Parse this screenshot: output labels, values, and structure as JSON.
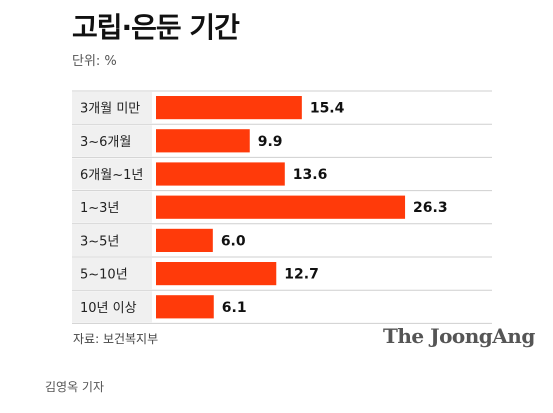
{
  "header": {
    "title": "고립·은둔 기간",
    "unit": "단위: %"
  },
  "footer": {
    "source": "자료: 보건복지부",
    "brand": "The JoongAng",
    "byline": "김영옥 기자"
  },
  "colors": {
    "bar": "#ff3a0a",
    "label_bg": "#f0f0f0",
    "rule": "#cfcfcf"
  },
  "chart_data": {
    "type": "bar",
    "orientation": "horizontal",
    "categories": [
      "3개월 미만",
      "3~6개월",
      "6개월~1년",
      "1~3년",
      "3~5년",
      "5~10년",
      "10년 이상"
    ],
    "values": [
      15.4,
      9.9,
      13.6,
      26.3,
      6.0,
      12.7,
      6.1
    ],
    "value_labels": [
      "15.4",
      "9.9",
      "13.6",
      "26.3",
      "6.0",
      "12.7",
      "6.1"
    ],
    "xlim": [
      0,
      30
    ],
    "grid": false,
    "legend": false
  }
}
